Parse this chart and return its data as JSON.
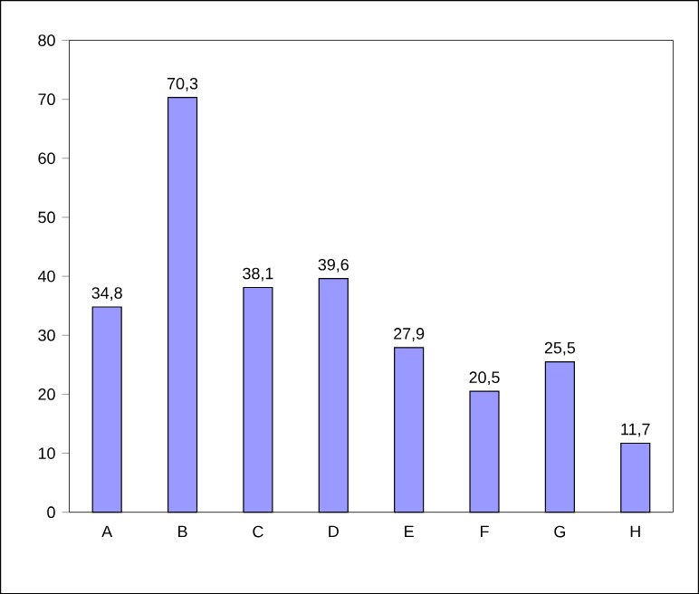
{
  "chart_data": {
    "type": "bar",
    "categories": [
      "A",
      "B",
      "C",
      "D",
      "E",
      "F",
      "G",
      "H"
    ],
    "values": [
      34.8,
      70.3,
      38.1,
      39.6,
      27.9,
      20.5,
      25.5,
      11.7
    ],
    "value_labels": [
      "34,8",
      "70,3",
      "38,1",
      "39,6",
      "27,9",
      "20,5",
      "25,5",
      "11,7"
    ],
    "color": "#9999ff",
    "ylim": [
      0,
      80
    ],
    "yticks": [
      0,
      10,
      20,
      30,
      40,
      50,
      60,
      70,
      80
    ]
  }
}
